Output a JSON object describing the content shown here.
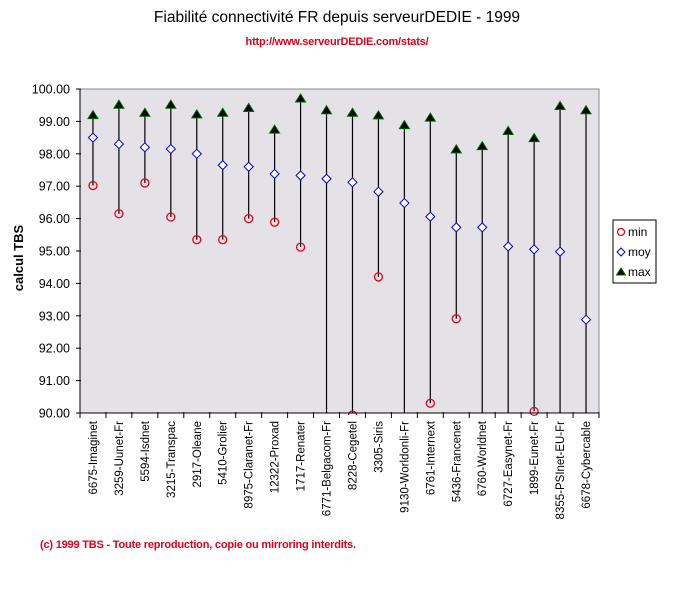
{
  "header": {
    "title": "Fiabilité connectivité FR depuis serveurDEDIE - 1999",
    "url": "http://www.serveurDEDIE.com/stats/"
  },
  "footer": {
    "copyright": "(c) 1999 TBS - Toute reproduction, copie ou mirroring interdits."
  },
  "colors": {
    "plot_background": "#e4e2e6",
    "min": "#e8001c",
    "moy": "#0000cc",
    "max_fill": "#000000",
    "max_edge": "#006600",
    "accent_red": "#e0001b"
  },
  "chart_data": {
    "type": "scatter",
    "title": "Fiabilité connectivité FR depuis serveurDEDIE - 1999",
    "subtitle": "http://www.serveurDEDIE.com/stats/",
    "xlabel": "",
    "ylabel": "calcul TBS",
    "ylim": [
      90,
      100
    ],
    "yticks": [
      "90.00",
      "91.00",
      "92.00",
      "93.00",
      "94.00",
      "95.00",
      "96.00",
      "97.00",
      "98.00",
      "99.00",
      "100.00"
    ],
    "grid": false,
    "legend_position": "right",
    "categories": [
      "6675-Imaginet",
      "3259-Uunet-Fr",
      "5594-Isdnet",
      "3215-Transpac",
      "2917-Oleane",
      "5410-Grolier",
      "8975-Claranet-Fr",
      "12322-Proxad",
      "1717-Renater",
      "6771-Belgacom-Fr",
      "8228-Cegetel",
      "3305-Siris",
      "9130-Worldonli-Fr",
      "6761-Internext",
      "5436-Francenet",
      "6760-Worldnet",
      "6727-Easynet-Fr",
      "1899-Eunet-Fr",
      "8355-PSInet-EU-Fr",
      "6678-Cybercable"
    ],
    "series": [
      {
        "name": "min",
        "marker": "circle",
        "values": [
          97.02,
          96.15,
          97.1,
          96.05,
          95.35,
          95.35,
          96.0,
          95.89,
          95.12,
          null,
          89.95,
          94.2,
          null,
          90.3,
          92.91,
          null,
          null,
          90.05,
          null,
          null
        ]
      },
      {
        "name": "moy",
        "marker": "diamond",
        "values": [
          98.5,
          98.3,
          98.2,
          98.15,
          98.0,
          97.65,
          97.6,
          97.38,
          97.33,
          97.23,
          97.12,
          96.83,
          96.48,
          96.06,
          95.73,
          95.73,
          95.14,
          95.05,
          94.98,
          92.88
        ]
      },
      {
        "name": "max",
        "marker": "triangle",
        "values": [
          99.18,
          99.5,
          99.25,
          99.5,
          99.2,
          99.25,
          99.4,
          98.73,
          99.69,
          99.33,
          99.25,
          99.17,
          98.87,
          99.1,
          98.12,
          98.22,
          98.69,
          98.47,
          99.46,
          99.33
        ]
      }
    ],
    "range_lines": "vertical line from min to max per category; clipped at 90.00 when min is below axis"
  }
}
